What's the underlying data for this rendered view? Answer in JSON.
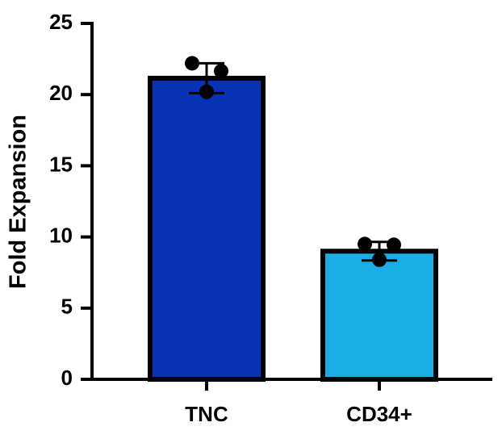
{
  "chart_data": {
    "type": "bar",
    "y_label": "Fold Expansion",
    "categories": [
      "TNC",
      "CD34+"
    ],
    "values": [
      21.15,
      9.0
    ],
    "errors": [
      1.05,
      0.65
    ],
    "points": [
      [
        22.2,
        21.65,
        20.2
      ],
      [
        9.5,
        9.45,
        8.4
      ]
    ],
    "colors": [
      "#0732b4",
      "#1aaee4"
    ],
    "ylim": [
      0,
      25
    ],
    "yticks": [
      0,
      5,
      10,
      15,
      20,
      25
    ]
  }
}
